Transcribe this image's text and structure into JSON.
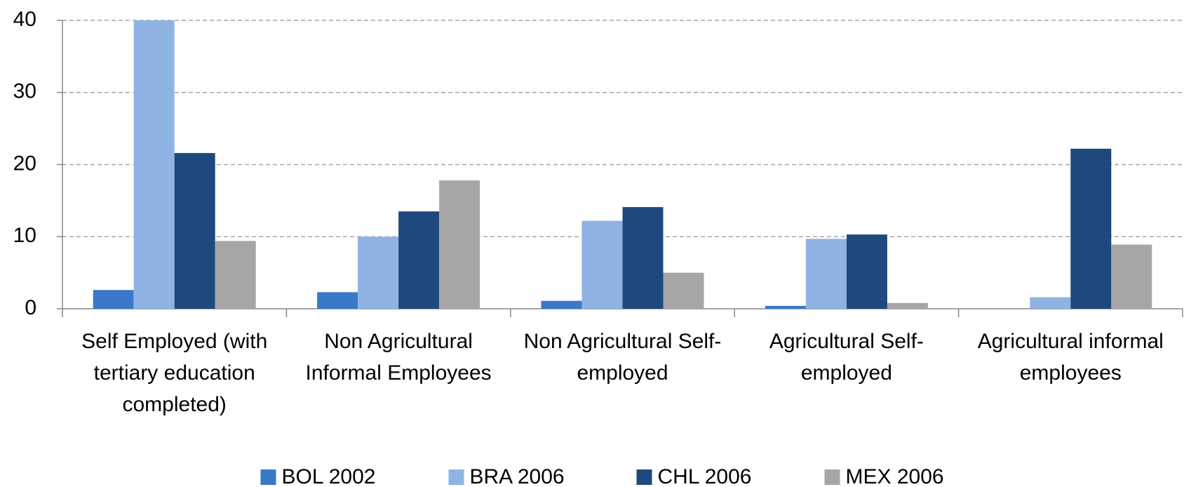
{
  "chart_data": {
    "type": "bar",
    "categories": [
      "Self Employed (with tertiary education completed)",
      "Non Agricultural Informal Employees",
      "Non Agricultural Self-employed",
      "Agricultural Self-employed",
      "Agricultural informal employees"
    ],
    "series": [
      {
        "name": "BOL 2002",
        "color": "#3a78c9",
        "values": [
          2.6,
          2.3,
          1.1,
          0.4,
          null
        ]
      },
      {
        "name": "BRA 2006",
        "color": "#8fb4e3",
        "values": [
          40,
          10,
          12.2,
          9.7,
          1.6
        ]
      },
      {
        "name": "CHL 2006",
        "color": "#1f497d",
        "values": [
          21.6,
          13.5,
          14.1,
          10.3,
          22.2
        ]
      },
      {
        "name": "MEX 2006",
        "color": "#a6a6a6",
        "values": [
          9.4,
          17.8,
          5.0,
          0.8,
          8.9
        ]
      }
    ],
    "ylim": [
      0,
      40
    ],
    "yticks": [
      0,
      10,
      20,
      30,
      40
    ],
    "grid": true,
    "legend": "bottom"
  }
}
